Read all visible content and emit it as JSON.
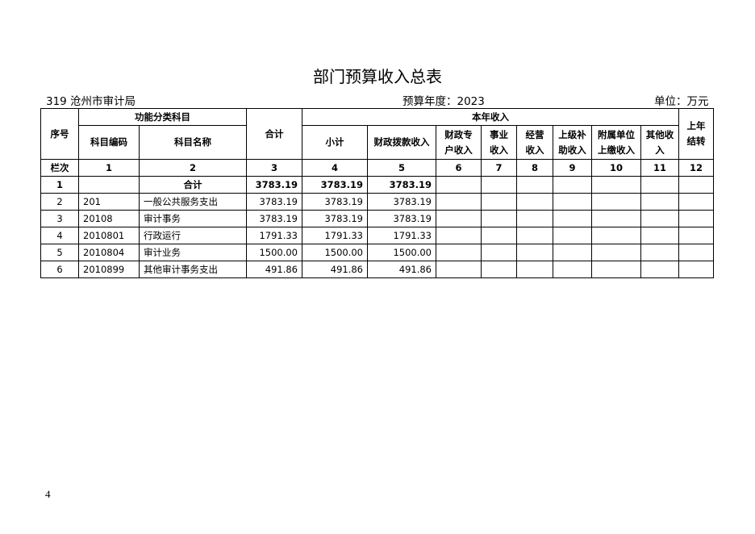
{
  "title": "部门预算收入总表",
  "unit_code": "319 沧州市审计局",
  "budget_year": "预算年度：2023",
  "unit_label": "单位：万元",
  "headers": {
    "seq": "序号",
    "func_group": "功能分类科目",
    "code": "科目编码",
    "name": "科目名称",
    "total": "合计",
    "this_year": "本年收入",
    "subtotal": "小计",
    "fiscal": "财政拨款收入",
    "special": "财政专\n户收入",
    "business": "事业\n收入",
    "operating": "经营\n收入",
    "subsidy": "上级补\n助收入",
    "affiliated": "附属单位\n上缴收入",
    "other": "其他收\n入",
    "carryover": "上年\n结转"
  },
  "column_numbers": [
    "栏次",
    "1",
    "2",
    "3",
    "4",
    "5",
    "6",
    "7",
    "8",
    "9",
    "10",
    "11",
    "12"
  ],
  "rows": [
    {
      "seq": "1",
      "code": "",
      "name": "合计",
      "total": "3783.19",
      "subtotal": "3783.19",
      "fiscal": "3783.19"
    },
    {
      "seq": "2",
      "code": "201",
      "name": "一般公共服务支出",
      "total": "3783.19",
      "subtotal": "3783.19",
      "fiscal": "3783.19"
    },
    {
      "seq": "3",
      "code": "20108",
      "name": "审计事务",
      "total": "3783.19",
      "subtotal": "3783.19",
      "fiscal": "3783.19"
    },
    {
      "seq": "4",
      "code": "2010801",
      "name": "行政运行",
      "total": "1791.33",
      "subtotal": "1791.33",
      "fiscal": "1791.33"
    },
    {
      "seq": "5",
      "code": "2010804",
      "name": "审计业务",
      "total": "1500.00",
      "subtotal": "1500.00",
      "fiscal": "1500.00"
    },
    {
      "seq": "6",
      "code": "2010899",
      "name": "其他审计事务支出",
      "total": "491.86",
      "subtotal": "491.86",
      "fiscal": "491.86"
    }
  ],
  "page_number": "4"
}
